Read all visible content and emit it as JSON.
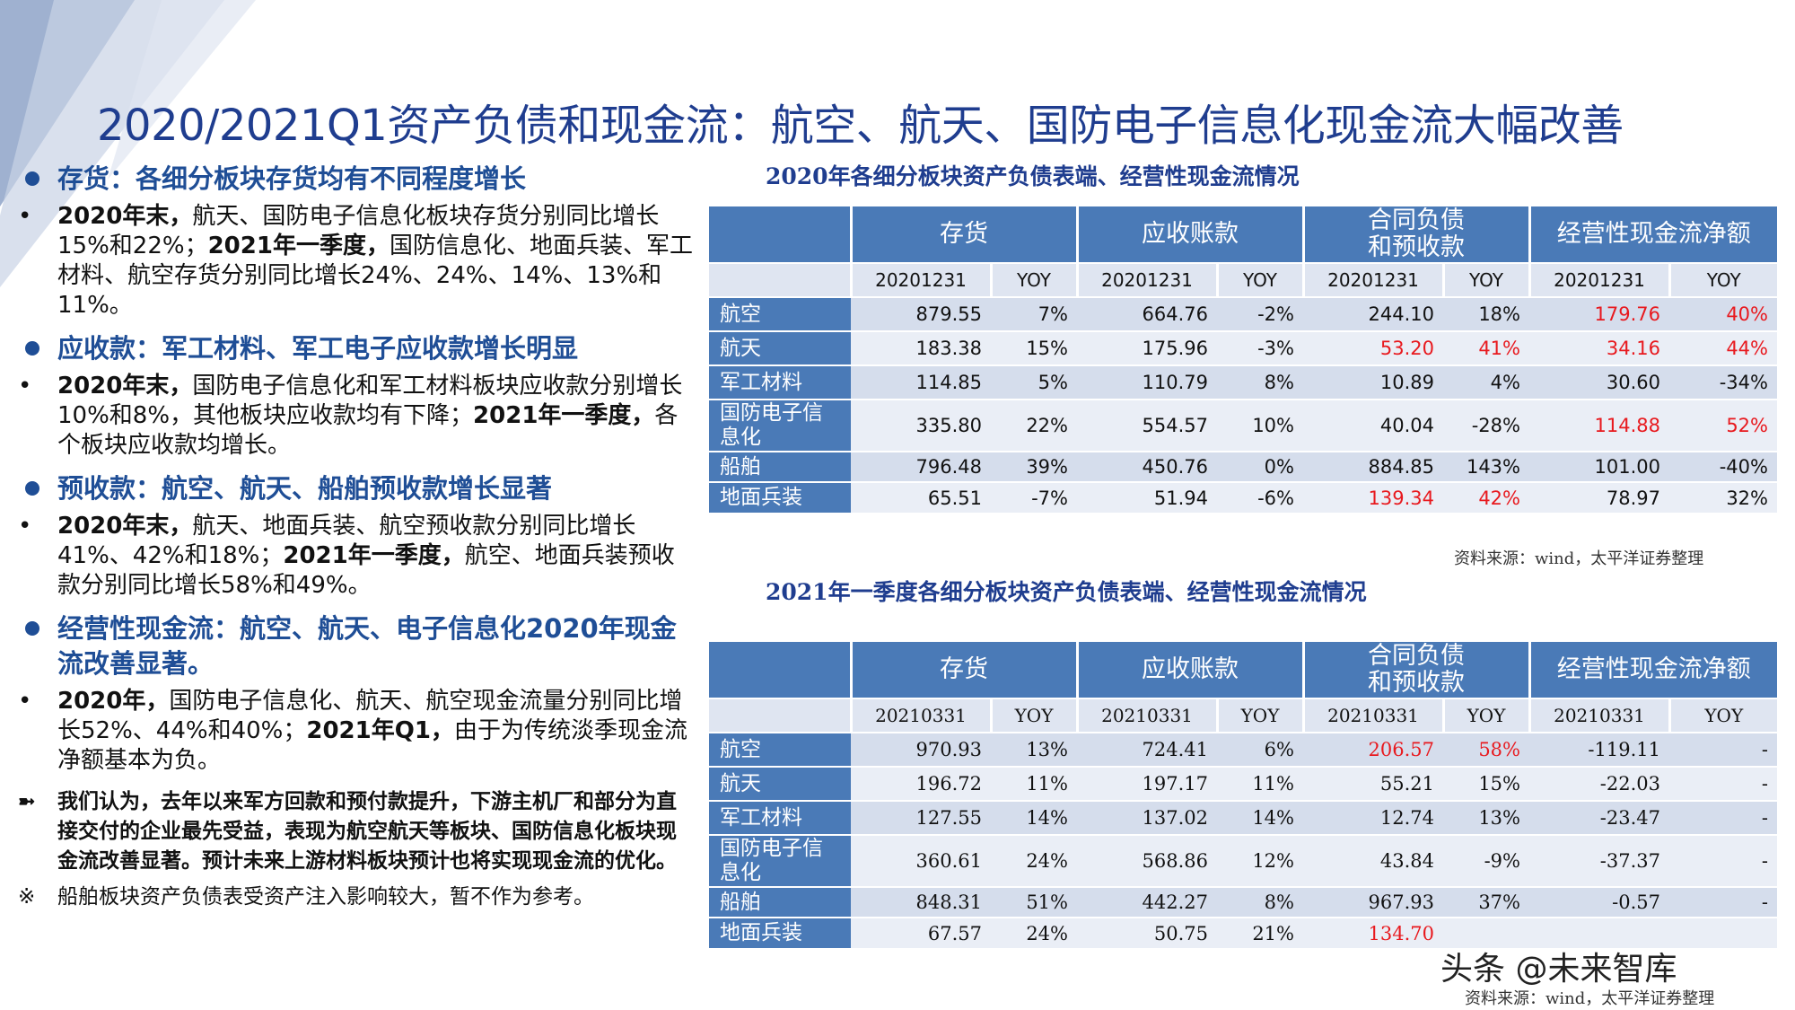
{
  "title": "2020/2021Q1资产负债和现金流：航空、航天、国防电子信息化现金流大幅改善",
  "left": {
    "sections": [
      {
        "heading": "存货：各细分板块存货均有不同程度增长",
        "bullet": [
          {
            "t": "2020年末，",
            "b": true
          },
          {
            "t": "航天、国防电子信息化板块存货分别同比增长15%和22%；",
            "b": false
          },
          {
            "t": "2021年一季度，",
            "b": true
          },
          {
            "t": "国防信息化、地面兵装、军工材料、航空存货分别同比增长24%、24%、14%、13%和11%。",
            "b": false
          }
        ]
      },
      {
        "heading": "应收款：军工材料、军工电子应收款增长明显",
        "bullet": [
          {
            "t": "2020年末，",
            "b": true
          },
          {
            "t": "国防电子信息化和军工材料板块应收款分别增长10%和8%，其他板块应收款均有下降；",
            "b": false
          },
          {
            "t": "2021年一季度，",
            "b": true
          },
          {
            "t": "各个板块应收款均增长。",
            "b": false
          }
        ]
      },
      {
        "heading": "预收款：航空、航天、船舶预收款增长显著",
        "bullet": [
          {
            "t": "2020年末，",
            "b": true
          },
          {
            "t": "航天、地面兵装、航空预收款分别同比增长41%、42%和18%；",
            "b": false
          },
          {
            "t": "2021年一季度，",
            "b": true
          },
          {
            "t": "航空、地面兵装预收款分别同比增长58%和49%。",
            "b": false
          }
        ]
      },
      {
        "heading": "经营性现金流：航空、航天、电子信息化2020年现金流改善显著。",
        "bullet": [
          {
            "t": "2020年，",
            "b": true
          },
          {
            "t": "国防电子信息化、航天、航空现金流量分别同比增长52%、44%和40%；",
            "b": false
          },
          {
            "t": "2021年Q1，",
            "b": true
          },
          {
            "t": "由于为传统淡季现金流净额基本为负。",
            "b": false
          }
        ]
      }
    ],
    "bullet_mark": "•",
    "opinion_mark": "➼",
    "opinion": "我们认为，去年以来军方回款和预付款提升，下游主机厂和部分为直接交付的企业最先受益，表现为航空航天等板块、国防信息化板块现金流改善显著。预计未来上游材料板块预计也将实现现金流的优化。",
    "note_mark": "※",
    "note": "船舶板块资产负债表受资产注入影响较大，暂不作为参考。"
  },
  "table1": {
    "title": "2020年各细分板块资产负债表端、经营性现金流情况",
    "headers": [
      "存货",
      "应收账款",
      "合同负债\n和预收款",
      "经营性现金流净额"
    ],
    "sub": [
      "20201231",
      "YOY",
      "20201231",
      "YOY",
      "20201231",
      "YOY",
      "20201231",
      "YOY"
    ],
    "rows": [
      {
        "name": "航空",
        "v": [
          "879.55",
          "7%",
          "664.76",
          "-2%",
          "244.10",
          "18%",
          "179.76",
          "40%"
        ],
        "red": [
          6,
          7
        ]
      },
      {
        "name": "航天",
        "v": [
          "183.38",
          "15%",
          "175.96",
          "-3%",
          "53.20",
          "41%",
          "34.16",
          "44%"
        ],
        "red": [
          4,
          5,
          6,
          7
        ]
      },
      {
        "name": "军工材料",
        "v": [
          "114.85",
          "5%",
          "110.79",
          "8%",
          "10.89",
          "4%",
          "30.60",
          "-34%"
        ],
        "red": []
      },
      {
        "name": "国防电子信息化",
        "v": [
          "335.80",
          "22%",
          "554.57",
          "10%",
          "40.04",
          "-28%",
          "114.88",
          "52%"
        ],
        "red": [
          6,
          7
        ]
      },
      {
        "name": "船舶",
        "v": [
          "796.48",
          "39%",
          "450.76",
          "0%",
          "884.85",
          "143%",
          "101.00",
          "-40%"
        ],
        "red": []
      },
      {
        "name": "地面兵装",
        "v": [
          "65.51",
          "-7%",
          "51.94",
          "-6%",
          "139.34",
          "42%",
          "78.97",
          "32%"
        ],
        "red": [
          4,
          5
        ]
      }
    ],
    "source": "资料来源：wind，太平洋证券整理"
  },
  "table2": {
    "title": "2021年一季度各细分板块资产负债表端、经营性现金流情况",
    "headers": [
      "存货",
      "应收账款",
      "合同负债\n和预收款",
      "经营性现金流净额"
    ],
    "sub": [
      "20210331",
      "YOY",
      "20210331",
      "YOY",
      "20210331",
      "YOY",
      "20210331",
      "YOY"
    ],
    "rows": [
      {
        "name": "航空",
        "v": [
          "970.93",
          "13%",
          "724.41",
          "6%",
          "206.57",
          "58%",
          "-119.11",
          "-"
        ],
        "red": [
          4,
          5
        ]
      },
      {
        "name": "航天",
        "v": [
          "196.72",
          "11%",
          "197.17",
          "11%",
          "55.21",
          "15%",
          "-22.03",
          "-"
        ],
        "red": []
      },
      {
        "name": "军工材料",
        "v": [
          "127.55",
          "14%",
          "137.02",
          "14%",
          "12.74",
          "13%",
          "-23.47",
          "-"
        ],
        "red": []
      },
      {
        "name": "国防电子信息化",
        "v": [
          "360.61",
          "24%",
          "568.86",
          "12%",
          "43.84",
          "-9%",
          "-37.37",
          "-"
        ],
        "red": []
      },
      {
        "name": "船舶",
        "v": [
          "848.31",
          "51%",
          "442.27",
          "8%",
          "967.93",
          "37%",
          "-0.57",
          "-"
        ],
        "red": []
      },
      {
        "name": "地面兵装",
        "v": [
          "67.57",
          "24%",
          "50.75",
          "21%",
          "134.70",
          "",
          "",
          ""
        ],
        "red": [
          4
        ]
      }
    ],
    "source": "资料来源：wind，太平洋证券整理"
  },
  "watermark": "头条 @未来智库",
  "colors": {
    "accent": "#1f4e96",
    "header": "#4a7ab7",
    "row_a": "#d5ddec",
    "row_b": "#eaeef6",
    "red": "#e8191e"
  }
}
